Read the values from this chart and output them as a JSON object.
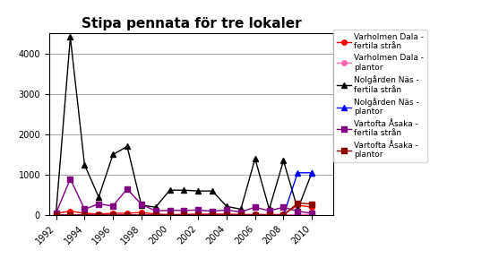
{
  "title": "Stipa pennata för tre lokaler",
  "years": [
    1992,
    1993,
    1994,
    1995,
    1996,
    1997,
    1998,
    1999,
    2000,
    2001,
    2002,
    2003,
    2004,
    2005,
    2006,
    2007,
    2008,
    2009,
    2010
  ],
  "series": [
    {
      "label": "Varholmen Dala -\nfertila strån",
      "color": "#FF0000",
      "marker": "o",
      "markersize": 4,
      "linewidth": 1.0,
      "values": [
        50,
        100,
        50,
        30,
        50,
        50,
        70,
        30,
        20,
        20,
        30,
        30,
        30,
        20,
        20,
        20,
        20,
        250,
        200
      ]
    },
    {
      "label": "Varholmen Dala -\nplantor",
      "color": "#FF69B4",
      "marker": "o",
      "markersize": 4,
      "linewidth": 1.0,
      "values": [
        5,
        5,
        5,
        5,
        5,
        5,
        5,
        5,
        5,
        5,
        5,
        5,
        5,
        5,
        5,
        5,
        5,
        20,
        20
      ]
    },
    {
      "label": "Nolgården Näs -\nfertila strån",
      "color": "#000000",
      "marker": "^",
      "markersize": 5,
      "linewidth": 1.0,
      "values": [
        80,
        4400,
        1250,
        450,
        1500,
        1700,
        250,
        200,
        620,
        620,
        600,
        600,
        220,
        150,
        1400,
        150,
        1350,
        150,
        1050
      ]
    },
    {
      "label": "Nolgården Näs -\nplantor",
      "color": "#0000FF",
      "marker": "^",
      "markersize": 5,
      "linewidth": 1.0,
      "values": [
        0,
        0,
        0,
        0,
        0,
        0,
        0,
        0,
        0,
        0,
        0,
        0,
        0,
        0,
        0,
        0,
        0,
        1050,
        1050
      ]
    },
    {
      "label": "Vartofta Åsaka -\nfertila strån",
      "color": "#800080",
      "marker": "s",
      "markersize": 4,
      "linewidth": 1.0,
      "values": [
        60,
        900,
        150,
        280,
        230,
        650,
        270,
        110,
        120,
        120,
        130,
        100,
        130,
        80,
        200,
        110,
        200,
        100,
        50
      ]
    },
    {
      "label": "Vartofta Åsaka -\nplantor",
      "color": "#8B0000",
      "marker": "s",
      "markersize": 4,
      "linewidth": 1.0,
      "values": [
        5,
        5,
        5,
        5,
        5,
        5,
        5,
        5,
        5,
        5,
        5,
        5,
        5,
        5,
        5,
        5,
        5,
        300,
        280
      ]
    }
  ],
  "ylim": [
    0,
    4500
  ],
  "yticks": [
    0,
    1000,
    2000,
    3000,
    4000
  ],
  "xticks": [
    1992,
    1994,
    1996,
    1998,
    2000,
    2002,
    2004,
    2006,
    2008,
    2010
  ],
  "figsize": [
    5.47,
    3.08
  ],
  "dpi": 100,
  "title_fontsize": 11,
  "tick_fontsize": 7,
  "legend_fontsize": 6.5
}
